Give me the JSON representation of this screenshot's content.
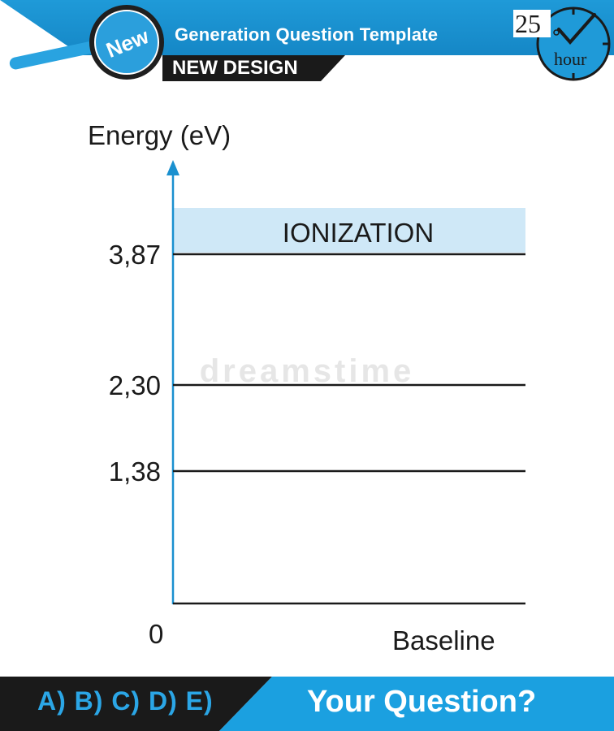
{
  "header": {
    "title": "Generation Question Template",
    "subtitle": "NEW DESIGN",
    "badge": "New",
    "clock_number": "25",
    "clock_unit": "hour"
  },
  "diagram": {
    "y_axis_label": "Energy (eV)",
    "x_axis_label": "Baseline",
    "origin_label": "0",
    "ionization_label": "IONIZATION",
    "levels": [
      {
        "label": "3,87",
        "value": 3.87
      },
      {
        "label": "2,30",
        "value": 2.3
      },
      {
        "label": "1,38",
        "value": 1.38
      }
    ],
    "watermark": "dreamstime"
  },
  "footer": {
    "options": "A) B) C) D) E)",
    "question": "Your Question?"
  },
  "colors": {
    "brand_blue": "#1f9ad8",
    "ionization_band": "#cfe8f7",
    "dark": "#1a1a1a"
  }
}
